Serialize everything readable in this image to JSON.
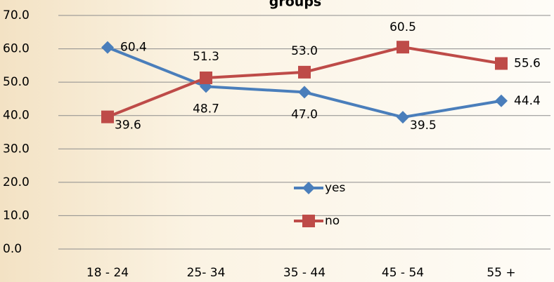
{
  "chart_data": {
    "type": "line",
    "title": "groups",
    "categories": [
      "18 - 24",
      "25- 34",
      "35 - 44",
      "45 - 54",
      "55 +"
    ],
    "series": [
      {
        "name": "yes",
        "color": "#4a7ebb",
        "marker": "diamond",
        "values": [
          60.4,
          48.7,
          47.0,
          39.5,
          44.4
        ],
        "value_labels": [
          "60.4",
          "48.7",
          "47.0",
          "39.5",
          "44.4"
        ]
      },
      {
        "name": "no",
        "color": "#be4b48",
        "marker": "square",
        "values": [
          39.6,
          51.3,
          53.0,
          60.5,
          55.6
        ],
        "value_labels": [
          "39.6",
          "51.3",
          "53.0",
          "60.5",
          "55.6"
        ]
      }
    ],
    "ylim": [
      0,
      70
    ],
    "yticks": [
      {
        "value": 0,
        "label": "0.0"
      },
      {
        "value": 10,
        "label": "10.0"
      },
      {
        "value": 20,
        "label": "20.0"
      },
      {
        "value": 30,
        "label": "30.0"
      },
      {
        "value": 40,
        "label": "40.0"
      },
      {
        "value": 50,
        "label": "50.0"
      },
      {
        "value": 60,
        "label": "60.0"
      },
      {
        "value": 70,
        "label": "70.0"
      }
    ],
    "grid": true
  }
}
